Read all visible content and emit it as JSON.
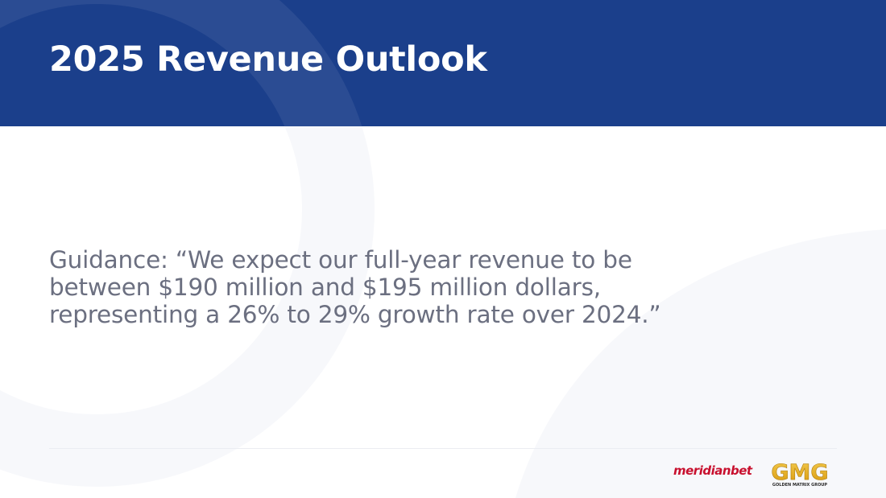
{
  "slide": {
    "title": "2025 Revenue Outlook",
    "guidance_lines": [
      "Guidance: “We expect our full-year revenue to be",
      "between $190 million and $195 million dollars,",
      "representing a 26% to 29% growth rate over 2024.”"
    ]
  },
  "footer": {
    "logo_meridianbet": "meridianbet",
    "logo_gmg_mark": "GMG",
    "logo_gmg_subtitle": "GOLDEN MATRIX GROUP"
  },
  "colors": {
    "header_bg": "#1b3f8b",
    "body_text": "#6b6f80",
    "meridianbet_red": "#c8102e",
    "gmg_gold": "#e8b31a"
  }
}
